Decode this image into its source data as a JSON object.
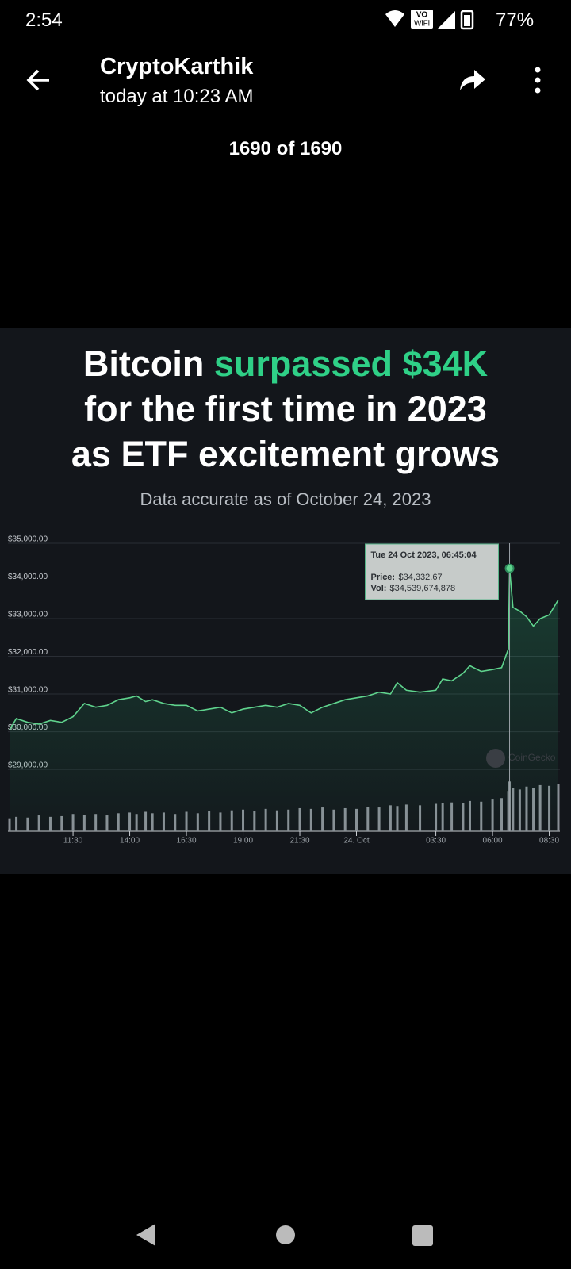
{
  "status_bar": {
    "time": "2:54",
    "vo": "VO",
    "wifi": "WiFi",
    "battery": "77%"
  },
  "header": {
    "sender": "CryptoKarthik",
    "sent_at": "today at 10:23 AM",
    "counter": "1690 of 1690"
  },
  "post": {
    "title_start": "Bitcoin",
    "title_highlight": "surpassed $34K",
    "title_line2": "for the first time in 2023",
    "title_line3": "as ETF excitement grows",
    "subtitle": "Data accurate as of October 24, 2023"
  },
  "chart_data": {
    "type": "line",
    "x": [
      8.7,
      9,
      9.5,
      10,
      10.5,
      11,
      11.5,
      12,
      12.5,
      13,
      13.5,
      14,
      14.3,
      14.7,
      15,
      15.5,
      16,
      16.5,
      17,
      17.5,
      18,
      18.5,
      19,
      19.5,
      20,
      20.5,
      21,
      21.5,
      22,
      22.5,
      23,
      23.5,
      24,
      24.5,
      25,
      25.5,
      25.8,
      26.2,
      26.8,
      27.5,
      27.8,
      28.2,
      28.7,
      29,
      29.5,
      30,
      30.4,
      30.7,
      30.75,
      30.9,
      31.2,
      31.5,
      31.8,
      32.1,
      32.5,
      32.9
    ],
    "series": [
      {
        "color": "#5fd38d",
        "values": [
          30050,
          30350,
          30250,
          30200,
          30300,
          30250,
          30400,
          30750,
          30650,
          30700,
          30850,
          30900,
          30950,
          30800,
          30850,
          30750,
          30700,
          30700,
          30550,
          30600,
          30650,
          30500,
          30600,
          30650,
          30700,
          30650,
          30750,
          30700,
          30500,
          30650,
          30750,
          30850,
          30900,
          30950,
          31050,
          31000,
          31300,
          31100,
          31050,
          31100,
          31400,
          31350,
          31550,
          31750,
          31600,
          31650,
          31700,
          32200,
          34332.67,
          33300,
          33200,
          33050,
          32800,
          33000,
          33100,
          33500
        ]
      },
      {
        "color": "#8a8f96",
        "axis": "y2",
        "values": [
          9000000000,
          10000000000,
          9500000000,
          11000000000,
          10000000000,
          10500000000,
          12000000000,
          11500000000,
          12000000000,
          11000000000,
          12500000000,
          13000000000,
          12000000000,
          13500000000,
          12500000000,
          13000000000,
          12000000000,
          13500000000,
          12500000000,
          14000000000,
          13000000000,
          14500000000,
          15000000000,
          14000000000,
          15500000000,
          14500000000,
          15000000000,
          16000000000,
          15500000000,
          16500000000,
          15000000000,
          16000000000,
          15500000000,
          17000000000,
          16500000000,
          18000000000,
          17500000000,
          18500000000,
          18000000000,
          19000000000,
          19500000000,
          20000000000,
          19500000000,
          21000000000,
          20500000000,
          22000000000,
          23000000000,
          28000000000,
          34539674878,
          30000000000,
          29000000000,
          31000000000,
          30000000000,
          32000000000,
          31500000000,
          33000000000
        ]
      }
    ],
    "xlim": [
      8.63,
      32.97
    ],
    "xticks": [
      {
        "value": 11.5,
        "label": "11:30"
      },
      {
        "value": 14,
        "label": "14:00"
      },
      {
        "value": 16.5,
        "label": "16:30"
      },
      {
        "value": 19,
        "label": "19:00"
      },
      {
        "value": 21.5,
        "label": "21:30"
      },
      {
        "value": 24,
        "label": "24. Oct"
      },
      {
        "value": 27.5,
        "label": "03:30"
      },
      {
        "value": 30,
        "label": "06:00"
      },
      {
        "value": 32.5,
        "label": "08:30"
      }
    ],
    "ylim": [
      27360,
      35000
    ],
    "yticks": [
      {
        "value": 29000,
        "label": "$29,000.00"
      },
      {
        "value": 30000,
        "label": "$30,000.00"
      },
      {
        "value": 31000,
        "label": "$31,000.00"
      },
      {
        "value": 32000,
        "label": "$32,000.00"
      },
      {
        "value": 33000,
        "label": "$33,000.00"
      },
      {
        "value": 34000,
        "label": "$34,000.00"
      },
      {
        "value": 35000,
        "label": "$35,000.00"
      }
    ],
    "y2lim": [
      0,
      200000000000
    ],
    "grid": true,
    "tooltip": {
      "date": "Tue 24 Oct 2023, 06:45:04",
      "price_label": "Price:",
      "price": "$34,332.67",
      "vol_label": "Vol:",
      "vol": "$34,539,674,878"
    },
    "watermark": "CoinGecko"
  }
}
